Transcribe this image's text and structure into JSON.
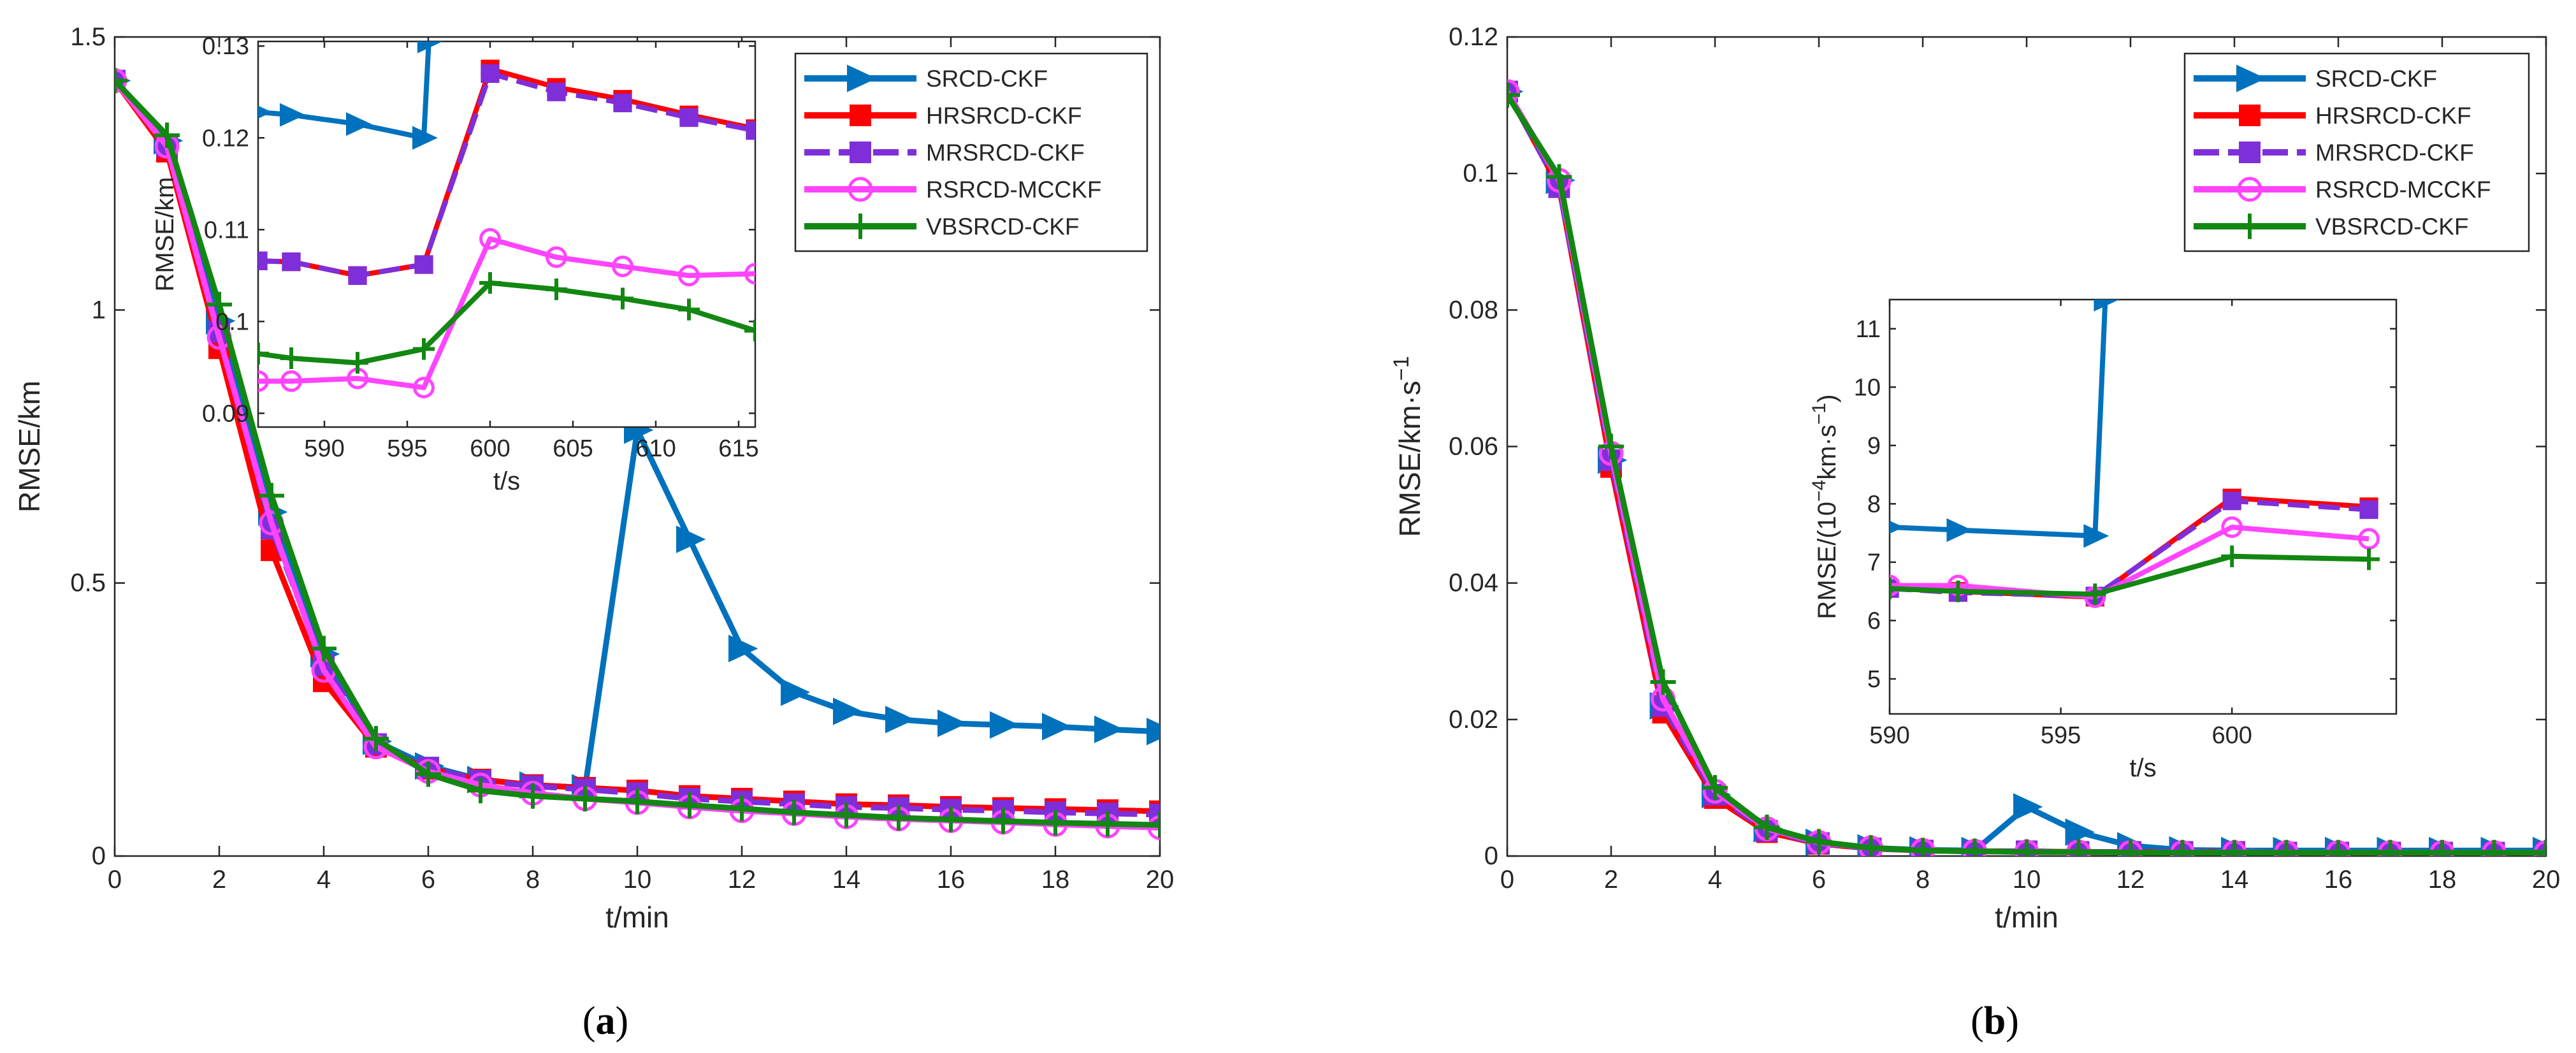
{
  "chart_data": [
    {
      "type": "line",
      "panel_label": "a",
      "xlabel": "t/min",
      "ylabel": "RMSE/km",
      "xlim": [
        0,
        20
      ],
      "ylim": [
        0,
        1.5
      ],
      "xticks": [
        0,
        2,
        4,
        6,
        8,
        10,
        12,
        14,
        16,
        18,
        20
      ],
      "yticks": [
        0,
        0.5,
        1,
        1.5
      ],
      "ytick_labels": [
        "0",
        "0.5",
        "1",
        "1.5"
      ],
      "legend_position": "top-right",
      "series": [
        {
          "name": "SRCD-CKF",
          "color": "#0072BD",
          "marker": "triangle-right",
          "dash": "",
          "x": [
            0,
            1,
            2,
            3,
            4,
            5,
            6,
            7,
            8,
            9,
            10,
            11,
            12,
            13,
            14,
            15,
            16,
            17,
            18,
            19,
            20
          ],
          "y": [
            1.42,
            1.31,
            0.98,
            0.63,
            0.37,
            0.21,
            0.165,
            0.14,
            0.13,
            0.125,
            0.78,
            0.58,
            0.38,
            0.3,
            0.265,
            0.25,
            0.243,
            0.24,
            0.237,
            0.232,
            0.228
          ]
        },
        {
          "name": "HRSRCD-CKF",
          "color": "#FF0000",
          "marker": "square",
          "dash": "",
          "x": [
            0,
            1,
            2,
            3,
            4,
            5,
            6,
            7,
            8,
            9,
            10,
            11,
            12,
            13,
            14,
            15,
            16,
            17,
            18,
            19,
            20
          ],
          "y": [
            1.42,
            1.29,
            0.93,
            0.56,
            0.32,
            0.2,
            0.16,
            0.14,
            0.13,
            0.125,
            0.12,
            0.11,
            0.105,
            0.1,
            0.095,
            0.093,
            0.09,
            0.088,
            0.086,
            0.084,
            0.082
          ]
        },
        {
          "name": "MRSRCD-CKF",
          "color": "#7E2FD9",
          "marker": "square",
          "dash": "34,14",
          "x": [
            0,
            1,
            2,
            3,
            4,
            5,
            6,
            7,
            8,
            9,
            10,
            11,
            12,
            13,
            14,
            15,
            16,
            17,
            18,
            19,
            20
          ],
          "y": [
            1.42,
            1.3,
            0.96,
            0.6,
            0.35,
            0.205,
            0.162,
            0.138,
            0.128,
            0.122,
            0.115,
            0.105,
            0.1,
            0.095,
            0.09,
            0.088,
            0.085,
            0.083,
            0.08,
            0.078,
            0.076
          ]
        },
        {
          "name": "RSRCD-MCCKF",
          "color": "#FF44FF",
          "marker": "circle",
          "dash": "",
          "x": [
            0,
            1,
            2,
            3,
            4,
            5,
            6,
            7,
            8,
            9,
            10,
            11,
            12,
            13,
            14,
            15,
            16,
            17,
            18,
            19,
            20
          ],
          "y": [
            1.42,
            1.3,
            0.95,
            0.61,
            0.34,
            0.2,
            0.155,
            0.13,
            0.115,
            0.105,
            0.098,
            0.09,
            0.083,
            0.078,
            0.072,
            0.068,
            0.065,
            0.062,
            0.058,
            0.055,
            0.052
          ]
        },
        {
          "name": "VBSRCD-CKF",
          "color": "#128712",
          "marker": "plus",
          "dash": "",
          "x": [
            0,
            1,
            2,
            3,
            4,
            5,
            6,
            7,
            8,
            9,
            10,
            11,
            12,
            13,
            14,
            15,
            16,
            17,
            18,
            19,
            20
          ],
          "y": [
            1.42,
            1.32,
            1.01,
            0.66,
            0.38,
            0.215,
            0.15,
            0.12,
            0.11,
            0.105,
            0.1,
            0.093,
            0.087,
            0.08,
            0.075,
            0.07,
            0.067,
            0.064,
            0.061,
            0.059,
            0.057
          ]
        }
      ],
      "inset": {
        "xlabel": "t/s",
        "ylabel": "RMSE/km",
        "xlim": [
          586,
          616
        ],
        "ylim": [
          0.0885,
          0.1305
        ],
        "xticks": [
          590,
          595,
          600,
          605,
          610,
          615
        ],
        "yticks": [
          0.09,
          0.1,
          0.11,
          0.12,
          0.13
        ],
        "ytick_labels": [
          "0.09",
          "0.1",
          "0.11",
          "0.12",
          "0.13"
        ],
        "series": [
          {
            "name": "SRCD-CKF",
            "x": [
              586,
              588,
              592,
              596,
              596.3
            ],
            "y": [
              0.1228,
              0.1225,
              0.1215,
              0.12,
              0.1305
            ]
          },
          {
            "name": "HRSRCD-CKF",
            "x": [
              586,
              588,
              592,
              596,
              600,
              604,
              608,
              612,
              616
            ],
            "y": [
              0.1066,
              0.1065,
              0.105,
              0.1062,
              0.1275,
              0.1255,
              0.1242,
              0.1225,
              0.121
            ]
          },
          {
            "name": "MRSRCD-CKF",
            "x": [
              586,
              588,
              592,
              596,
              600,
              604,
              608,
              612,
              616
            ],
            "y": [
              0.1066,
              0.1065,
              0.105,
              0.1062,
              0.127,
              0.125,
              0.1238,
              0.1222,
              0.1208
            ]
          },
          {
            "name": "RSRCD-MCCKF",
            "x": [
              586,
              588,
              592,
              596,
              600,
              604,
              608,
              612,
              616
            ],
            "y": [
              0.0935,
              0.0935,
              0.0938,
              0.0928,
              0.109,
              0.107,
              0.106,
              0.105,
              0.1052
            ]
          },
          {
            "name": "VBSRCD-CKF",
            "x": [
              586,
              588,
              592,
              596,
              600,
              604,
              608,
              612,
              616
            ],
            "y": [
              0.0965,
              0.096,
              0.0955,
              0.097,
              0.1042,
              0.1035,
              0.1025,
              0.1013,
              0.099
            ]
          }
        ]
      }
    },
    {
      "type": "line",
      "panel_label": "b",
      "xlabel": "t/min",
      "ylabel": "RMSE/km·s",
      "ylabel_sup": "−1",
      "xlim": [
        0,
        20
      ],
      "ylim": [
        0,
        0.12
      ],
      "xticks": [
        0,
        2,
        4,
        6,
        8,
        10,
        12,
        14,
        16,
        18,
        20
      ],
      "yticks": [
        0,
        0.02,
        0.04,
        0.06,
        0.08,
        0.1,
        0.12
      ],
      "ytick_labels": [
        "0",
        "0.02",
        "0.04",
        "0.06",
        "0.08",
        "0.1",
        "0.12"
      ],
      "legend_position": "top-right",
      "series": [
        {
          "name": "SRCD-CKF",
          "color": "#0072BD",
          "marker": "triangle-right",
          "dash": "",
          "x": [
            0,
            1,
            2,
            3,
            4,
            5,
            6,
            7,
            8,
            9,
            10,
            11,
            12,
            13,
            14,
            15,
            16,
            17,
            18,
            19,
            20
          ],
          "y": [
            0.112,
            0.099,
            0.058,
            0.022,
            0.009,
            0.004,
            0.002,
            0.0012,
            0.0009,
            0.0008,
            0.0072,
            0.0035,
            0.0015,
            0.0009,
            0.0008,
            0.0008,
            0.0008,
            0.0008,
            0.0008,
            0.0008,
            0.0008
          ]
        },
        {
          "name": "HRSRCD-CKF",
          "color": "#FF0000",
          "marker": "square",
          "dash": "",
          "x": [
            0,
            1,
            2,
            3,
            4,
            5,
            6,
            7,
            8,
            9,
            10,
            11,
            12,
            13,
            14,
            15,
            16,
            17,
            18,
            19,
            20
          ],
          "y": [
            0.112,
            0.098,
            0.057,
            0.021,
            0.0085,
            0.0035,
            0.0018,
            0.0011,
            0.0008,
            0.0007,
            0.0007,
            0.0006,
            0.0006,
            0.0006,
            0.0006,
            0.0005,
            0.0005,
            0.0005,
            0.0005,
            0.0005,
            0.0005
          ]
        },
        {
          "name": "MRSRCD-CKF",
          "color": "#7E2FD9",
          "marker": "square",
          "dash": "34,14",
          "x": [
            0,
            1,
            2,
            3,
            4,
            5,
            6,
            7,
            8,
            9,
            10,
            11,
            12,
            13,
            14,
            15,
            16,
            17,
            18,
            19,
            20
          ],
          "y": [
            0.112,
            0.098,
            0.058,
            0.022,
            0.009,
            0.0037,
            0.0019,
            0.0011,
            0.0008,
            0.0007,
            0.0007,
            0.0006,
            0.0006,
            0.0006,
            0.0006,
            0.0005,
            0.0005,
            0.0005,
            0.0005,
            0.0005,
            0.0005
          ]
        },
        {
          "name": "RSRCD-MCCKF",
          "color": "#FF44FF",
          "marker": "circle",
          "dash": "",
          "x": [
            0,
            1,
            2,
            3,
            4,
            5,
            6,
            7,
            8,
            9,
            10,
            11,
            12,
            13,
            14,
            15,
            16,
            17,
            18,
            19,
            20
          ],
          "y": [
            0.112,
            0.099,
            0.059,
            0.023,
            0.0095,
            0.004,
            0.002,
            0.0012,
            0.0008,
            0.0007,
            0.0006,
            0.0006,
            0.0005,
            0.0005,
            0.0005,
            0.0005,
            0.0005,
            0.0005,
            0.0005,
            0.0005,
            0.0005
          ]
        },
        {
          "name": "VBSRCD-CKF",
          "color": "#128712",
          "marker": "plus",
          "dash": "",
          "x": [
            0,
            1,
            2,
            3,
            4,
            5,
            6,
            7,
            8,
            9,
            10,
            11,
            12,
            13,
            14,
            15,
            16,
            17,
            18,
            19,
            20
          ],
          "y": [
            0.1115,
            0.0995,
            0.06,
            0.0255,
            0.01,
            0.0042,
            0.0021,
            0.0012,
            0.0008,
            0.0007,
            0.0006,
            0.0006,
            0.0005,
            0.0005,
            0.0005,
            0.0005,
            0.0005,
            0.0005,
            0.0005,
            0.0005,
            0.0005
          ]
        }
      ],
      "inset": {
        "xlabel": "t/s",
        "ylabel": "RMSE/(10",
        "ylabel_sup": "−4",
        "ylabel_mid": "km·s",
        "ylabel_sup2": "−1",
        "ylabel_end": ")",
        "xlim": [
          590,
          604.8
        ],
        "ylim": [
          4.4,
          11.5
        ],
        "xticks": [
          590,
          595,
          600
        ],
        "yticks": [
          5,
          6,
          7,
          8,
          9,
          10,
          11
        ],
        "ytick_labels": [
          "5",
          "6",
          "7",
          "8",
          "9",
          "10",
          "11"
        ],
        "series": [
          {
            "name": "SRCD-CKF",
            "x": [
              590,
              592,
              596,
              596.3
            ],
            "y": [
              7.6,
              7.55,
              7.45,
              11.5
            ]
          },
          {
            "name": "HRSRCD-CKF",
            "x": [
              590,
              592,
              596,
              600,
              604
            ],
            "y": [
              6.55,
              6.5,
              6.4,
              8.1,
              7.95
            ]
          },
          {
            "name": "MRSRCD-CKF",
            "x": [
              590,
              592,
              596,
              600,
              604
            ],
            "y": [
              6.55,
              6.48,
              6.42,
              8.05,
              7.9
            ]
          },
          {
            "name": "RSRCD-MCCKF",
            "x": [
              590,
              592,
              596,
              600,
              604
            ],
            "y": [
              6.6,
              6.6,
              6.4,
              7.6,
              7.4
            ]
          },
          {
            "name": "VBSRCD-CKF",
            "x": [
              590,
              592,
              596,
              600,
              604
            ],
            "y": [
              6.55,
              6.5,
              6.45,
              7.1,
              7.05
            ]
          }
        ]
      }
    }
  ]
}
